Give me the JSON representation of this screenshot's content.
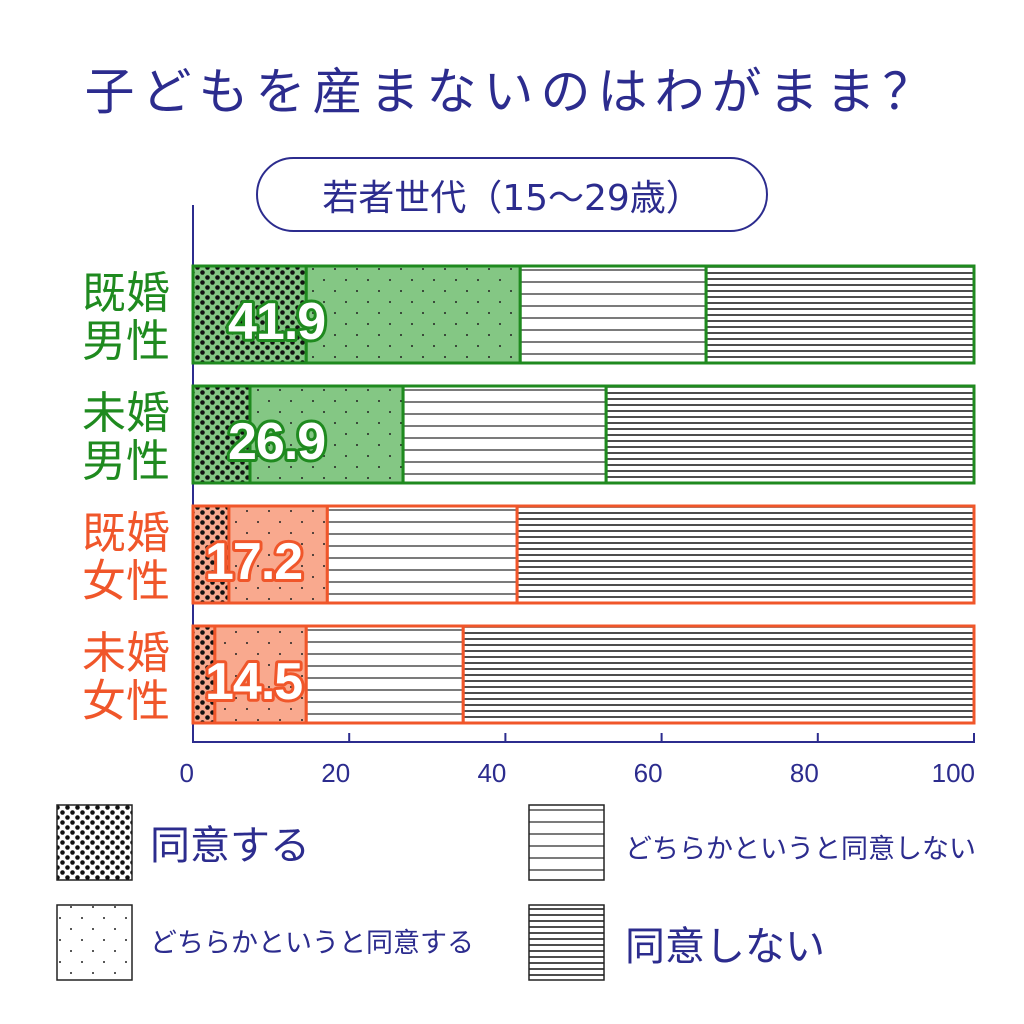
{
  "theme": {
    "text_color": "#2c2c8e"
  },
  "chart_data": {
    "type": "bar",
    "orientation": "horizontal",
    "stacked": true,
    "title": "子どもを産まないのはわがまま？",
    "subtitle": "若者世代（15〜29歳）",
    "xlabel": "",
    "ylabel": "",
    "categories": [
      "既婚男性",
      "未婚男性",
      "既婚女性",
      "未婚女性"
    ],
    "category_colors": [
      {
        "stroke": "#1f8a1f",
        "fill": "#84c784"
      },
      {
        "stroke": "#1f8a1f",
        "fill": "#84c784"
      },
      {
        "stroke": "#f0562a",
        "fill": "#f9a98e"
      },
      {
        "stroke": "#f0562a",
        "fill": "#f9a98e"
      }
    ],
    "series": [
      {
        "name": "同意する",
        "values": [
          14.5,
          7.3,
          4.6,
          2.8
        ],
        "pattern": "dense-dots",
        "tinted": true
      },
      {
        "name": "どちらかというと同意する",
        "values": [
          27.4,
          19.6,
          12.6,
          11.7
        ],
        "pattern": "sparse-dots",
        "tinted": true
      },
      {
        "name": "どちらかというと同意しない",
        "values": [
          23.8,
          26.0,
          24.3,
          20.1
        ],
        "pattern": "sparse-lines",
        "tinted": false
      },
      {
        "name": "同意しない",
        "values": [
          34.3,
          47.1,
          58.5,
          65.4
        ],
        "pattern": "dense-lines",
        "tinted": false
      }
    ],
    "data_labels": [
      41.9,
      26.9,
      17.2,
      14.5
    ],
    "xlim": [
      0,
      100
    ],
    "xticks": [
      0,
      20,
      40,
      60,
      80,
      100
    ],
    "grid": false,
    "legend": "bottom"
  }
}
